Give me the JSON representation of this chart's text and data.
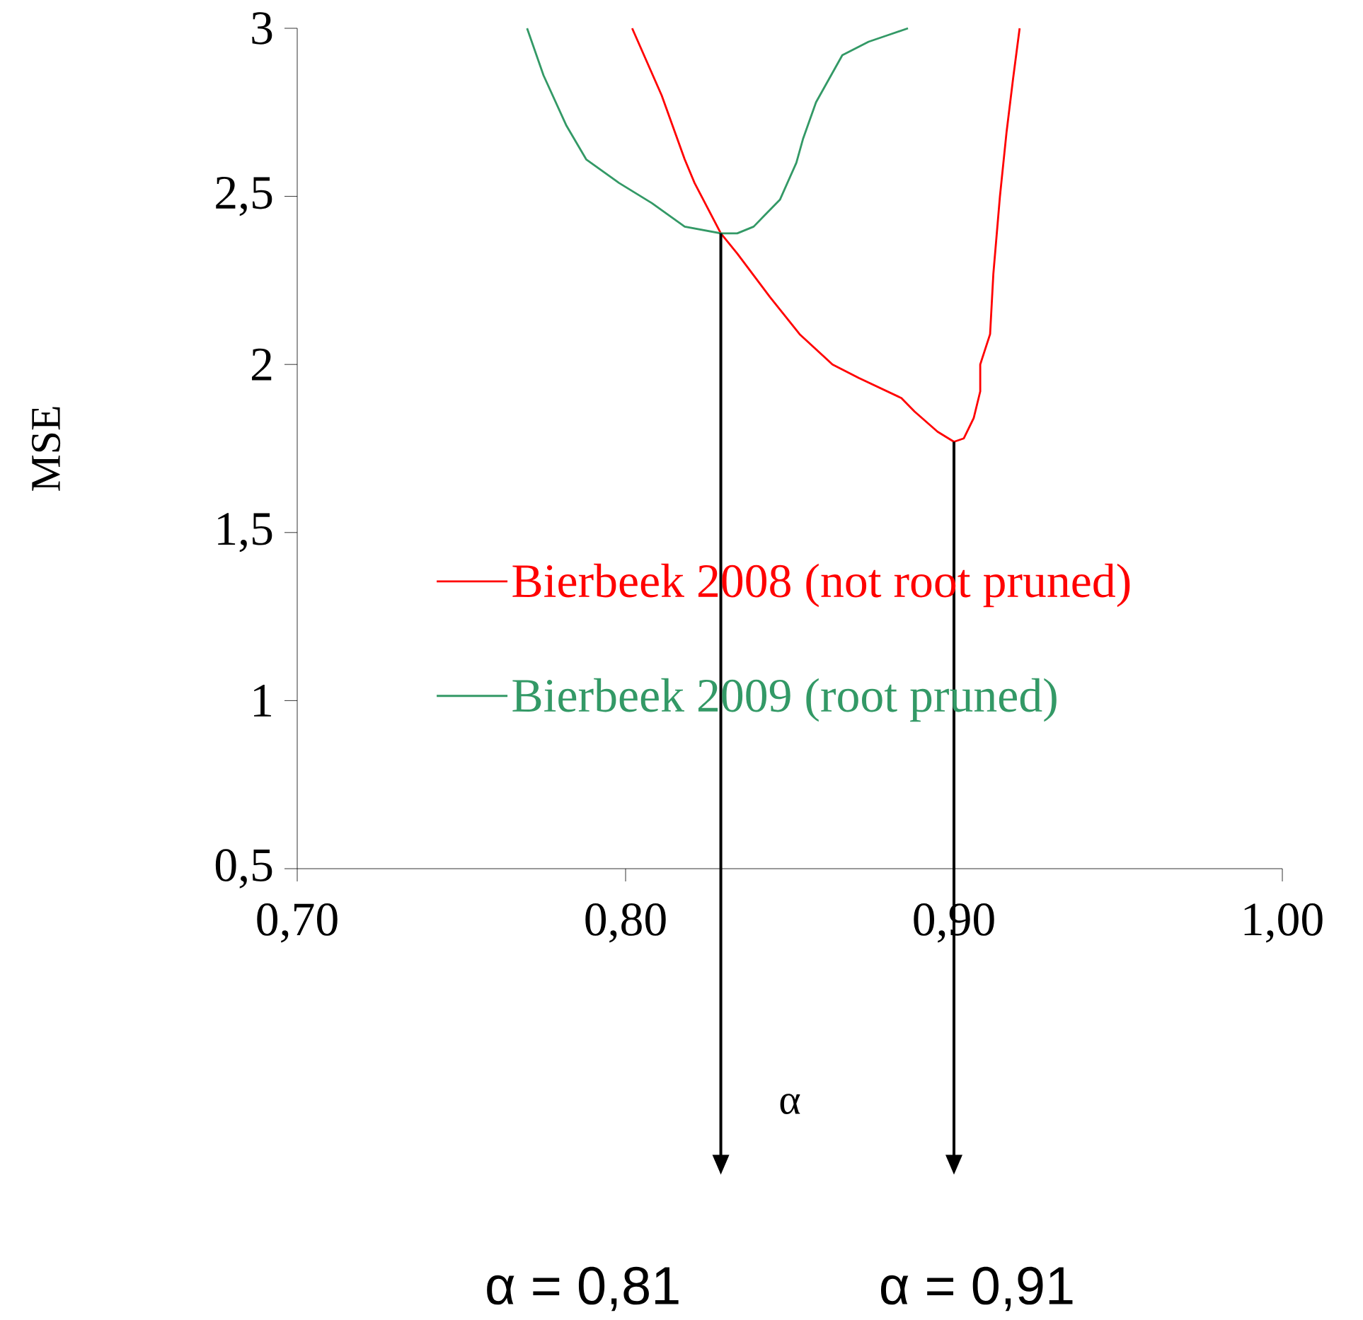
{
  "chart_data": {
    "type": "line",
    "xlabel": "α",
    "ylabel": "MSE",
    "xlim": [
      0.7,
      1.0
    ],
    "ylim": [
      0.5,
      3
    ],
    "xticks": [
      {
        "value": 0.7,
        "label": "0,70"
      },
      {
        "value": 0.8,
        "label": "0,80"
      },
      {
        "value": 0.9,
        "label": "0,90"
      },
      {
        "value": 1.0,
        "label": "1,00"
      }
    ],
    "yticks": [
      {
        "value": 0.5,
        "label": "0,5"
      },
      1,
      {
        "value": 1.5,
        "label": "1,5"
      },
      2,
      {
        "value": 2.5,
        "label": "2,5"
      },
      3
    ],
    "legend": "right",
    "marker": "none",
    "line_style": "solid",
    "series": [
      {
        "name": "Bierbeek 2008 (not root pruned)",
        "color": "#ff0000",
        "x": [
          0.802,
          0.811,
          0.818,
          0.821,
          0.829,
          0.834,
          0.844,
          0.853,
          0.863,
          0.871,
          0.884,
          0.888,
          0.895,
          0.9,
          0.903,
          0.906,
          0.908,
          0.908,
          0.911,
          0.912,
          0.914,
          0.916,
          0.918,
          0.92
        ],
        "values": [
          3.0,
          2.8,
          2.61,
          2.54,
          2.39,
          2.33,
          2.2,
          2.09,
          2.0,
          1.96,
          1.9,
          1.86,
          1.8,
          1.77,
          1.78,
          1.84,
          1.92,
          2.0,
          2.09,
          2.27,
          2.5,
          2.69,
          2.85,
          3.0
        ]
      },
      {
        "name": "Bierbeek 2009 (root pruned)",
        "color": "#339966",
        "x": [
          0.77,
          0.775,
          0.782,
          0.788,
          0.798,
          0.808,
          0.818,
          0.829,
          0.834,
          0.839,
          0.842,
          0.847,
          0.852,
          0.854,
          0.858,
          0.866,
          0.874,
          0.88,
          0.886
        ],
        "values": [
          3.0,
          2.86,
          2.71,
          2.61,
          2.54,
          2.48,
          2.41,
          2.39,
          2.39,
          2.41,
          2.44,
          2.49,
          2.6,
          2.67,
          2.78,
          2.92,
          2.96,
          2.98,
          3.0
        ]
      }
    ],
    "annotations": [
      "α = 0,81",
      "α = 0,91"
    ]
  }
}
